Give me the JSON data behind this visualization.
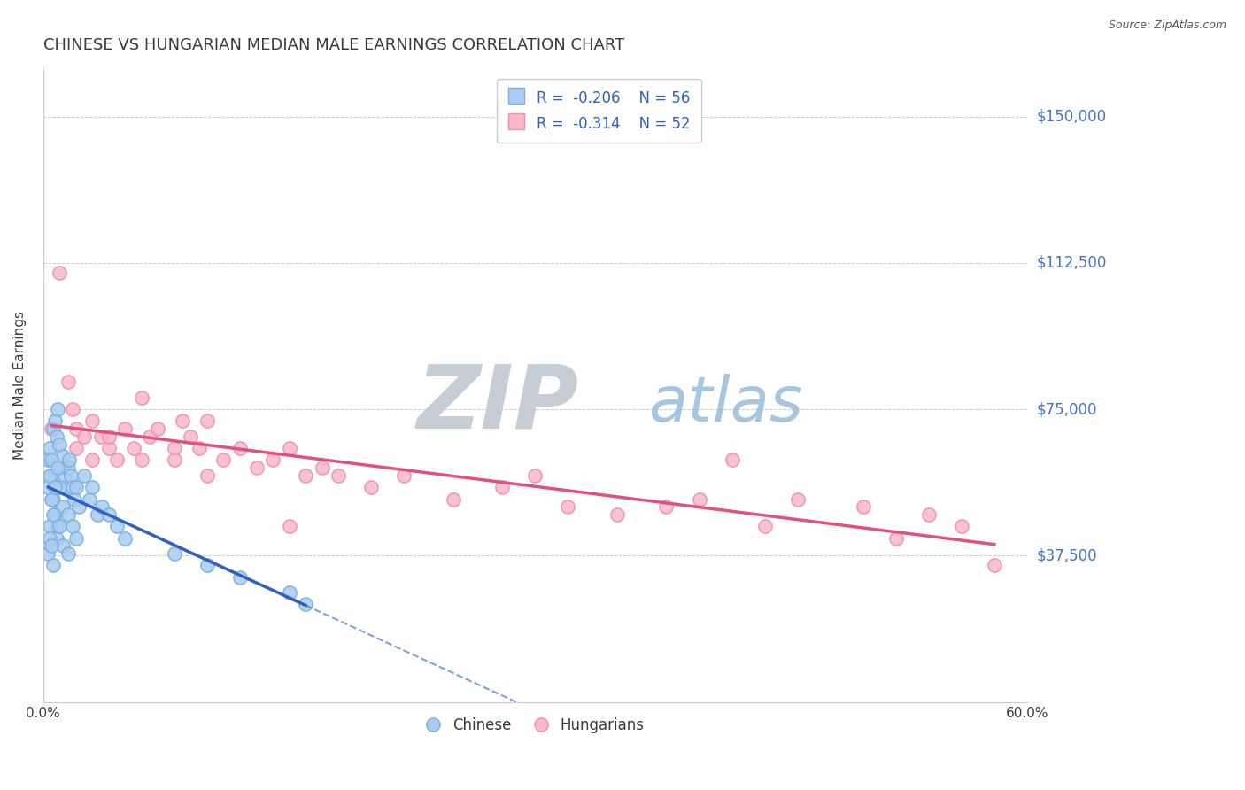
{
  "title": "CHINESE VS HUNGARIAN MEDIAN MALE EARNINGS CORRELATION CHART",
  "source": "Source: ZipAtlas.com",
  "ylabel": "Median Male Earnings",
  "xlim": [
    0.0,
    0.6
  ],
  "ylim": [
    0,
    162500
  ],
  "yticks": [
    0,
    37500,
    75000,
    112500,
    150000
  ],
  "ytick_labels": [
    "",
    "$37,500",
    "$75,000",
    "$112,500",
    "$150,000"
  ],
  "xticks": [
    0.0,
    0.6
  ],
  "xtick_labels": [
    "0.0%",
    "60.0%"
  ],
  "title_color": "#3a3a3a",
  "title_fontsize": 13,
  "axis_label_color": "#3a3a3a",
  "tick_color_y": "#4472c4",
  "grid_color": "#b0b8c8",
  "legend_r_chinese": "R = -0.206",
  "legend_n_chinese": "N = 56",
  "legend_r_hungarian": "R = -0.314",
  "legend_n_hungarian": "N = 52",
  "chinese_scatter_color": "#7ab0e0",
  "hungarian_scatter_color": "#f090b0",
  "chinese_line_color": "#3060c0",
  "hungarian_line_color": "#e05080",
  "chinese_face_color": "#aaccf0",
  "hungarian_face_color": "#f8b8cc",
  "chinese_x": [
    0.003,
    0.004,
    0.005,
    0.006,
    0.007,
    0.008,
    0.009,
    0.01,
    0.011,
    0.012,
    0.013,
    0.014,
    0.015,
    0.016,
    0.017,
    0.018,
    0.019,
    0.02,
    0.022,
    0.025,
    0.028,
    0.03,
    0.033,
    0.036,
    0.04,
    0.045,
    0.05,
    0.003,
    0.004,
    0.005,
    0.006,
    0.007,
    0.008,
    0.009,
    0.01,
    0.012,
    0.015,
    0.018,
    0.02,
    0.004,
    0.005,
    0.006,
    0.007,
    0.008,
    0.01,
    0.012,
    0.015,
    0.003,
    0.004,
    0.005,
    0.006,
    0.08,
    0.1,
    0.12,
    0.15,
    0.16
  ],
  "chinese_y": [
    62000,
    65000,
    58000,
    70000,
    72000,
    68000,
    75000,
    66000,
    60000,
    63000,
    58000,
    55000,
    60000,
    62000,
    58000,
    55000,
    52000,
    55000,
    50000,
    58000,
    52000,
    55000,
    48000,
    50000,
    48000,
    45000,
    42000,
    55000,
    58000,
    62000,
    52000,
    48000,
    45000,
    60000,
    55000,
    50000,
    48000,
    45000,
    42000,
    45000,
    52000,
    48000,
    55000,
    42000,
    45000,
    40000,
    38000,
    38000,
    42000,
    40000,
    35000,
    38000,
    35000,
    32000,
    28000,
    25000
  ],
  "hungarian_x": [
    0.005,
    0.01,
    0.015,
    0.018,
    0.02,
    0.025,
    0.03,
    0.035,
    0.04,
    0.045,
    0.05,
    0.055,
    0.06,
    0.065,
    0.07,
    0.08,
    0.085,
    0.09,
    0.095,
    0.1,
    0.11,
    0.12,
    0.13,
    0.14,
    0.15,
    0.16,
    0.17,
    0.18,
    0.2,
    0.22,
    0.25,
    0.28,
    0.3,
    0.32,
    0.35,
    0.38,
    0.4,
    0.42,
    0.44,
    0.46,
    0.5,
    0.52,
    0.54,
    0.56,
    0.02,
    0.03,
    0.04,
    0.06,
    0.08,
    0.1,
    0.15,
    0.58
  ],
  "hungarian_y": [
    70000,
    110000,
    82000,
    75000,
    70000,
    68000,
    72000,
    68000,
    65000,
    62000,
    70000,
    65000,
    78000,
    68000,
    70000,
    65000,
    72000,
    68000,
    65000,
    72000,
    62000,
    65000,
    60000,
    62000,
    65000,
    58000,
    60000,
    58000,
    55000,
    58000,
    52000,
    55000,
    58000,
    50000,
    48000,
    50000,
    52000,
    62000,
    45000,
    52000,
    50000,
    42000,
    48000,
    45000,
    65000,
    62000,
    68000,
    62000,
    62000,
    58000,
    45000,
    35000
  ]
}
